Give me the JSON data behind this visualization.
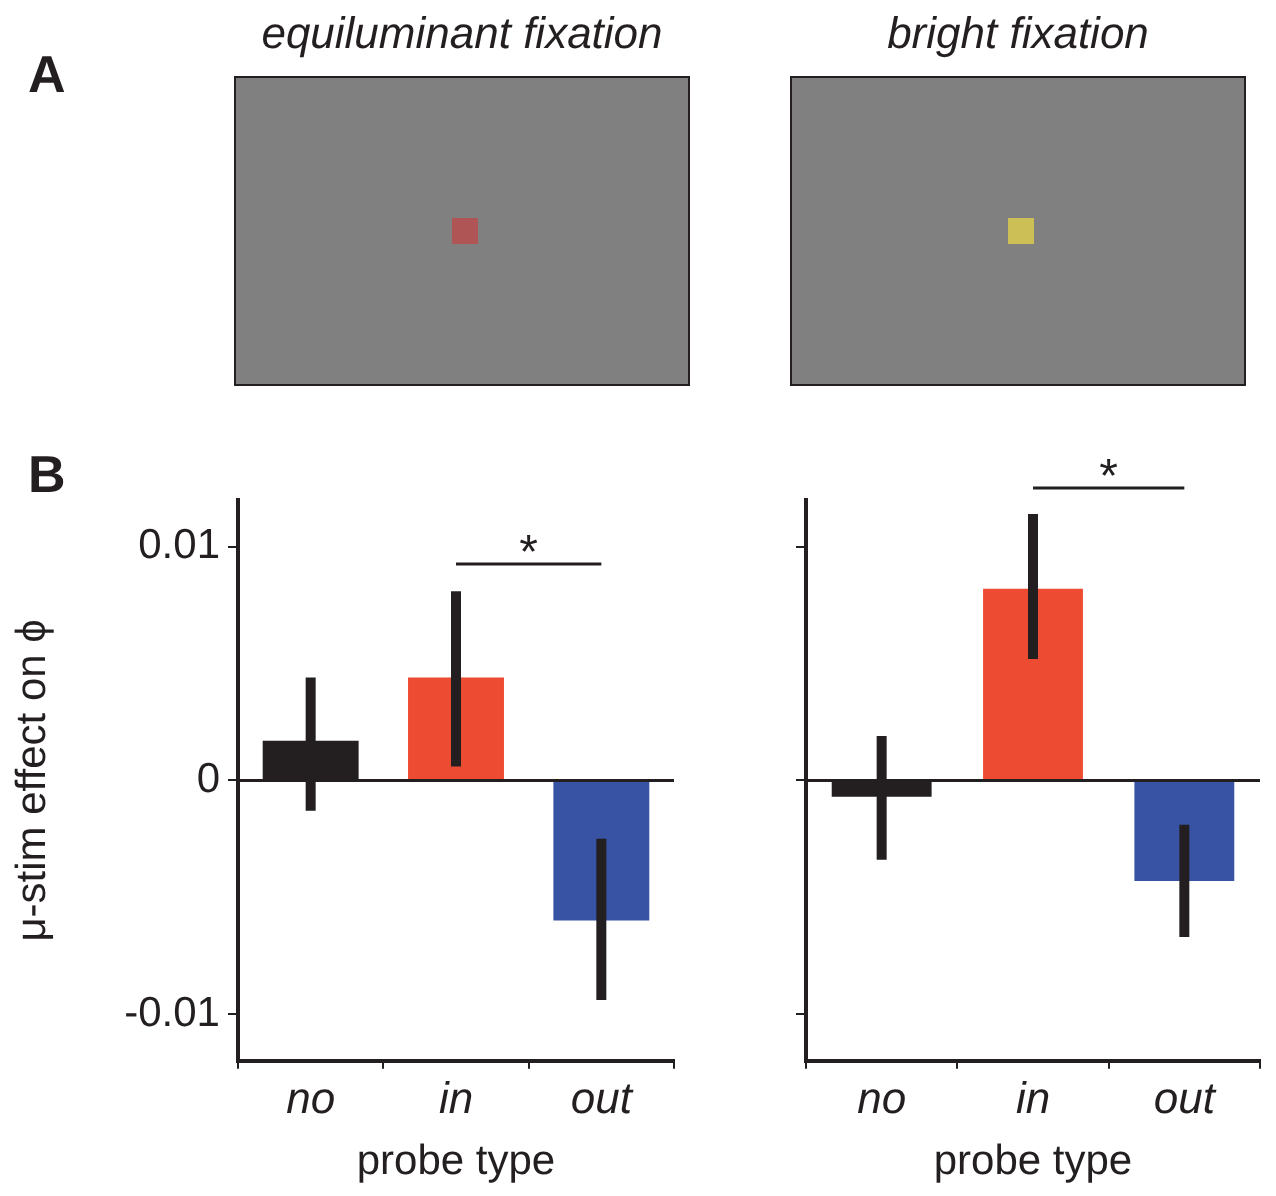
{
  "chart_data": [
    {
      "type": "bar",
      "title": "equiluminant fixation",
      "ylabel": "μ-stim effect on ϕ",
      "xlabel": "probe type",
      "categories": [
        "no",
        "in",
        "out"
      ],
      "values": [
        0.0017,
        0.0044,
        -0.006
      ],
      "colors": [
        "#231f20",
        "#ee4b33",
        "#3953a4"
      ],
      "errors": [
        [
          -0.0013,
          0.0044
        ],
        [
          0.0006,
          0.0081
        ],
        [
          -0.0094,
          -0.0025
        ]
      ],
      "ylim": [
        -0.012,
        0.012
      ],
      "yticks": [
        -0.01,
        0,
        0.01
      ],
      "ref_lines": [
        {
          "axis": "y",
          "value": 0
        }
      ],
      "annotations": [
        "A",
        "B",
        "*"
      ]
    },
    {
      "type": "bar",
      "title": "bright fixation",
      "xlabel": "probe type",
      "categories": [
        "no",
        "in",
        "out"
      ],
      "values": [
        -0.0007,
        0.0082,
        -0.0043
      ],
      "colors": [
        "#231f20",
        "#ee4b33",
        "#3953a4"
      ],
      "errors": [
        [
          -0.0034,
          0.0019
        ],
        [
          0.0052,
          0.0114
        ],
        [
          -0.0067,
          -0.0019
        ]
      ],
      "ylim": [
        -0.012,
        0.012
      ],
      "yticks": [
        -0.01,
        0,
        0.01
      ],
      "tick_labels": "x",
      "ref_lines": [
        {
          "axis": "y",
          "value": 0
        }
      ],
      "annotations": [
        "*"
      ]
    }
  ]
}
